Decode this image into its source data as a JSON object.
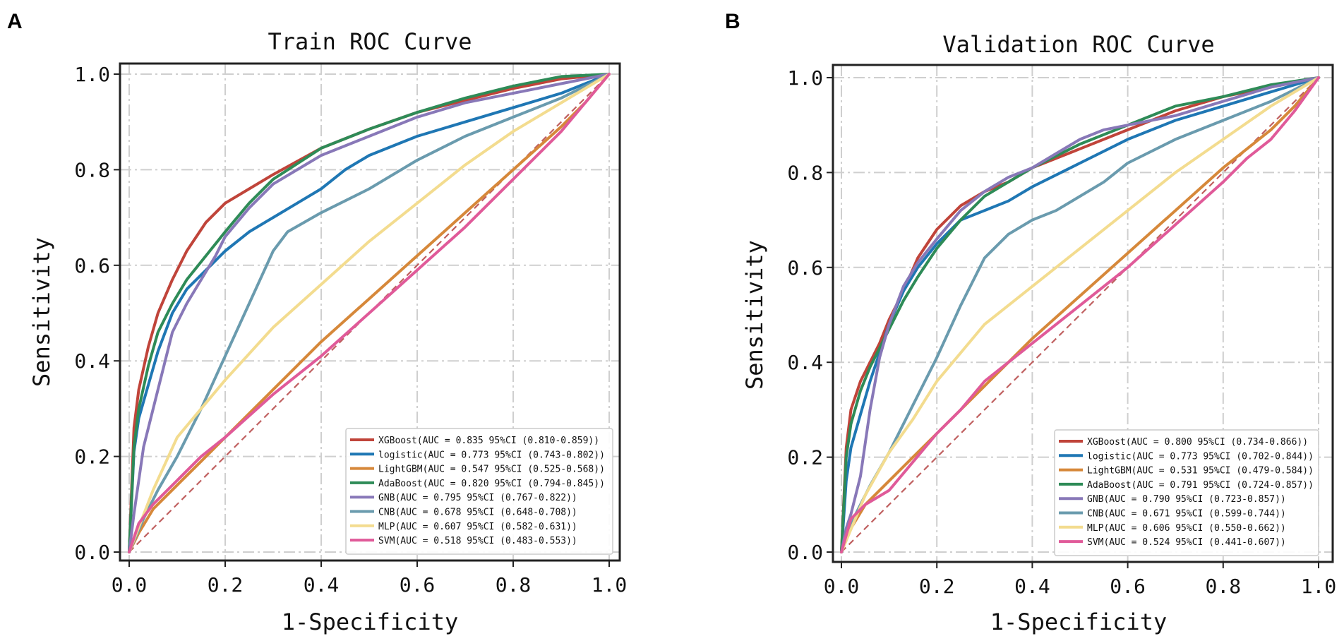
{
  "panels": [
    {
      "letter": "A"
    },
    {
      "letter": "B"
    }
  ],
  "chart_data": [
    {
      "type": "line",
      "title": "Train ROC Curve",
      "xlabel": "1-Specificity",
      "ylabel": "Sensitivity",
      "xlim": [
        0,
        1
      ],
      "ylim": [
        0,
        1
      ],
      "xticks": [
        "0.0",
        "0.2",
        "0.4",
        "0.6",
        "0.8",
        "1.0"
      ],
      "yticks": [
        "0.0",
        "0.2",
        "0.4",
        "0.6",
        "0.8",
        "1.0"
      ],
      "grid": true,
      "legend_position": "lower-right",
      "reference_line": {
        "x": [
          0,
          1
        ],
        "y": [
          0,
          1
        ],
        "style": "dashed",
        "color": "#c06060"
      },
      "series": [
        {
          "name": "XGBoost",
          "legend": "XGBoost(AUC = 0.835 95%CI (0.810-0.859))",
          "color": "#c0443a",
          "x": [
            0,
            0.01,
            0.02,
            0.04,
            0.06,
            0.09,
            0.12,
            0.16,
            0.2,
            0.25,
            0.3,
            0.4,
            0.5,
            0.6,
            0.7,
            0.8,
            0.9,
            1.0
          ],
          "y": [
            0,
            0.26,
            0.34,
            0.43,
            0.5,
            0.57,
            0.63,
            0.69,
            0.73,
            0.76,
            0.79,
            0.845,
            0.885,
            0.92,
            0.945,
            0.97,
            0.99,
            1.0
          ]
        },
        {
          "name": "logistic",
          "legend": "logistic(AUC = 0.773 95%CI (0.743-0.802))",
          "color": "#1f77b4",
          "x": [
            0,
            0.01,
            0.02,
            0.04,
            0.06,
            0.09,
            0.12,
            0.16,
            0.2,
            0.25,
            0.3,
            0.35,
            0.4,
            0.45,
            0.5,
            0.6,
            0.7,
            0.8,
            0.9,
            1.0
          ],
          "y": [
            0,
            0.21,
            0.28,
            0.35,
            0.42,
            0.5,
            0.55,
            0.59,
            0.63,
            0.67,
            0.7,
            0.73,
            0.76,
            0.8,
            0.83,
            0.87,
            0.9,
            0.93,
            0.96,
            1.0
          ]
        },
        {
          "name": "LightGBM",
          "legend": "LightGBM(AUC = 0.547 95%CI (0.525-0.568))",
          "color": "#d6883a",
          "x": [
            0,
            0.02,
            0.05,
            0.1,
            0.15,
            0.2,
            0.3,
            0.4,
            0.5,
            0.6,
            0.7,
            0.8,
            0.9,
            0.95,
            1.0
          ],
          "y": [
            0,
            0.04,
            0.09,
            0.14,
            0.19,
            0.24,
            0.34,
            0.44,
            0.53,
            0.62,
            0.71,
            0.8,
            0.89,
            0.94,
            1.0
          ]
        },
        {
          "name": "AdaBoost",
          "legend": "AdaBoost(AUC = 0.820 95%CI (0.794-0.845))",
          "color": "#2e8b57",
          "x": [
            0,
            0.01,
            0.02,
            0.04,
            0.06,
            0.09,
            0.12,
            0.16,
            0.2,
            0.25,
            0.3,
            0.4,
            0.5,
            0.6,
            0.7,
            0.8,
            0.9,
            1.0
          ],
          "y": [
            0,
            0.22,
            0.3,
            0.39,
            0.46,
            0.52,
            0.57,
            0.62,
            0.67,
            0.73,
            0.78,
            0.845,
            0.885,
            0.92,
            0.95,
            0.975,
            0.995,
            1.0
          ]
        },
        {
          "name": "GNB",
          "legend": "GNB(AUC = 0.795 95%CI (0.767-0.822))",
          "color": "#8878b8",
          "x": [
            0,
            0.01,
            0.02,
            0.03,
            0.05,
            0.07,
            0.09,
            0.12,
            0.15,
            0.18,
            0.2,
            0.25,
            0.3,
            0.35,
            0.4,
            0.5,
            0.6,
            0.7,
            0.8,
            0.9,
            1.0
          ],
          "y": [
            0,
            0.08,
            0.15,
            0.22,
            0.3,
            0.38,
            0.46,
            0.52,
            0.57,
            0.62,
            0.66,
            0.72,
            0.77,
            0.8,
            0.83,
            0.87,
            0.91,
            0.94,
            0.96,
            0.98,
            1.0
          ]
        },
        {
          "name": "CNB",
          "legend": "CNB(AUC = 0.678 95%CI (0.648-0.708))",
          "color": "#6a9bae",
          "x": [
            0,
            0.03,
            0.06,
            0.1,
            0.15,
            0.2,
            0.25,
            0.3,
            0.33,
            0.4,
            0.5,
            0.6,
            0.7,
            0.8,
            0.9,
            1.0
          ],
          "y": [
            0,
            0.07,
            0.13,
            0.2,
            0.3,
            0.41,
            0.52,
            0.63,
            0.67,
            0.71,
            0.76,
            0.82,
            0.87,
            0.91,
            0.95,
            1.0
          ]
        },
        {
          "name": "MLP",
          "legend": "MLP(AUC = 0.607 95%CI (0.582-0.631))",
          "color": "#f3dc8f",
          "x": [
            0,
            0.05,
            0.1,
            0.2,
            0.3,
            0.4,
            0.5,
            0.6,
            0.7,
            0.8,
            0.9,
            1.0
          ],
          "y": [
            0,
            0.13,
            0.24,
            0.36,
            0.47,
            0.56,
            0.65,
            0.73,
            0.81,
            0.88,
            0.94,
            1.0
          ]
        },
        {
          "name": "SVM",
          "legend": "SVM(AUC = 0.518 95%CI (0.483-0.553))",
          "color": "#e05a99",
          "x": [
            0,
            0.02,
            0.05,
            0.1,
            0.15,
            0.2,
            0.3,
            0.4,
            0.5,
            0.6,
            0.7,
            0.8,
            0.85,
            0.9,
            0.95,
            1.0
          ],
          "y": [
            0,
            0.06,
            0.1,
            0.15,
            0.2,
            0.24,
            0.33,
            0.41,
            0.5,
            0.59,
            0.68,
            0.78,
            0.83,
            0.88,
            0.94,
            1.0
          ]
        }
      ]
    },
    {
      "type": "line",
      "title": "Validation ROC Curve",
      "xlabel": "1-Specificity",
      "ylabel": "Sensitivity",
      "xlim": [
        0,
        1
      ],
      "ylim": [
        0,
        1
      ],
      "xticks": [
        "0.0",
        "0.2",
        "0.4",
        "0.6",
        "0.8",
        "1.0"
      ],
      "yticks": [
        "0.0",
        "0.2",
        "0.4",
        "0.6",
        "0.8",
        "1.0"
      ],
      "grid": true,
      "legend_position": "lower-right",
      "reference_line": {
        "x": [
          0,
          1
        ],
        "y": [
          0,
          1
        ],
        "style": "dashed",
        "color": "#c06060"
      },
      "series": [
        {
          "name": "XGBoost",
          "legend": "XGBoost(AUC = 0.800 95%CI (0.734-0.866))",
          "color": "#c0443a",
          "x": [
            0,
            0.01,
            0.02,
            0.04,
            0.06,
            0.08,
            0.1,
            0.13,
            0.16,
            0.2,
            0.25,
            0.3,
            0.35,
            0.4,
            0.5,
            0.6,
            0.7,
            0.8,
            0.9,
            1.0
          ],
          "y": [
            0,
            0.22,
            0.3,
            0.36,
            0.4,
            0.44,
            0.49,
            0.55,
            0.62,
            0.68,
            0.73,
            0.76,
            0.78,
            0.81,
            0.85,
            0.89,
            0.93,
            0.96,
            0.98,
            1.0
          ]
        },
        {
          "name": "logistic",
          "legend": "logistic(AUC = 0.773 95%CI (0.702-0.844))",
          "color": "#1f77b4",
          "x": [
            0,
            0.01,
            0.02,
            0.04,
            0.06,
            0.08,
            0.1,
            0.13,
            0.16,
            0.2,
            0.25,
            0.3,
            0.35,
            0.4,
            0.5,
            0.6,
            0.7,
            0.8,
            0.9,
            1.0
          ],
          "y": [
            0,
            0.15,
            0.22,
            0.29,
            0.36,
            0.42,
            0.48,
            0.55,
            0.6,
            0.65,
            0.7,
            0.72,
            0.74,
            0.77,
            0.82,
            0.87,
            0.91,
            0.94,
            0.97,
            1.0
          ]
        },
        {
          "name": "LightGBM",
          "legend": "LightGBM(AUC = 0.531 95%CI (0.479-0.584))",
          "color": "#d6883a",
          "x": [
            0,
            0.02,
            0.05,
            0.1,
            0.15,
            0.2,
            0.3,
            0.4,
            0.5,
            0.6,
            0.7,
            0.8,
            0.9,
            0.95,
            1.0
          ],
          "y": [
            0,
            0.05,
            0.1,
            0.15,
            0.2,
            0.25,
            0.35,
            0.45,
            0.54,
            0.63,
            0.72,
            0.81,
            0.89,
            0.94,
            1.0
          ]
        },
        {
          "name": "AdaBoost",
          "legend": "AdaBoost(AUC = 0.791 95%CI (0.724-0.857))",
          "color": "#2e8b57",
          "x": [
            0,
            0.01,
            0.02,
            0.04,
            0.06,
            0.08,
            0.1,
            0.13,
            0.16,
            0.2,
            0.25,
            0.3,
            0.35,
            0.4,
            0.5,
            0.6,
            0.7,
            0.8,
            0.9,
            1.0
          ],
          "y": [
            0,
            0.2,
            0.27,
            0.34,
            0.39,
            0.43,
            0.47,
            0.53,
            0.58,
            0.64,
            0.7,
            0.75,
            0.78,
            0.81,
            0.86,
            0.9,
            0.94,
            0.96,
            0.985,
            1.0
          ]
        },
        {
          "name": "GNB",
          "legend": "GNB(AUC = 0.790 95%CI (0.723-0.857))",
          "color": "#8878b8",
          "x": [
            0,
            0.01,
            0.02,
            0.04,
            0.06,
            0.08,
            0.1,
            0.13,
            0.16,
            0.2,
            0.25,
            0.3,
            0.35,
            0.4,
            0.45,
            0.5,
            0.55,
            0.6,
            0.7,
            0.8,
            0.9,
            1.0
          ],
          "y": [
            0,
            0.05,
            0.08,
            0.16,
            0.3,
            0.41,
            0.48,
            0.56,
            0.61,
            0.66,
            0.72,
            0.76,
            0.79,
            0.81,
            0.84,
            0.87,
            0.89,
            0.9,
            0.92,
            0.95,
            0.98,
            1.0
          ]
        },
        {
          "name": "CNB",
          "legend": "CNB(AUC = 0.671 95%CI (0.599-0.744))",
          "color": "#6a9bae",
          "x": [
            0,
            0.03,
            0.06,
            0.1,
            0.15,
            0.2,
            0.25,
            0.3,
            0.35,
            0.4,
            0.45,
            0.5,
            0.55,
            0.6,
            0.7,
            0.8,
            0.9,
            1.0
          ],
          "y": [
            0,
            0.08,
            0.14,
            0.21,
            0.31,
            0.41,
            0.52,
            0.62,
            0.67,
            0.7,
            0.72,
            0.75,
            0.78,
            0.82,
            0.87,
            0.91,
            0.95,
            1.0
          ]
        },
        {
          "name": "MLP",
          "legend": "MLP(AUC = 0.606 95%CI (0.550-0.662))",
          "color": "#f3dc8f",
          "x": [
            0,
            0.05,
            0.1,
            0.15,
            0.2,
            0.3,
            0.4,
            0.5,
            0.6,
            0.7,
            0.8,
            0.9,
            1.0
          ],
          "y": [
            0,
            0.12,
            0.21,
            0.28,
            0.36,
            0.48,
            0.56,
            0.64,
            0.72,
            0.8,
            0.87,
            0.94,
            1.0
          ]
        },
        {
          "name": "SVM",
          "legend": "SVM(AUC = 0.524 95%CI (0.441-0.607))",
          "color": "#e05a99",
          "x": [
            0,
            0.02,
            0.05,
            0.1,
            0.15,
            0.2,
            0.25,
            0.3,
            0.35,
            0.4,
            0.5,
            0.6,
            0.7,
            0.8,
            0.85,
            0.9,
            0.95,
            1.0
          ],
          "y": [
            0,
            0.07,
            0.1,
            0.13,
            0.19,
            0.25,
            0.3,
            0.36,
            0.4,
            0.44,
            0.52,
            0.6,
            0.69,
            0.78,
            0.83,
            0.87,
            0.93,
            1.0
          ]
        }
      ]
    }
  ]
}
